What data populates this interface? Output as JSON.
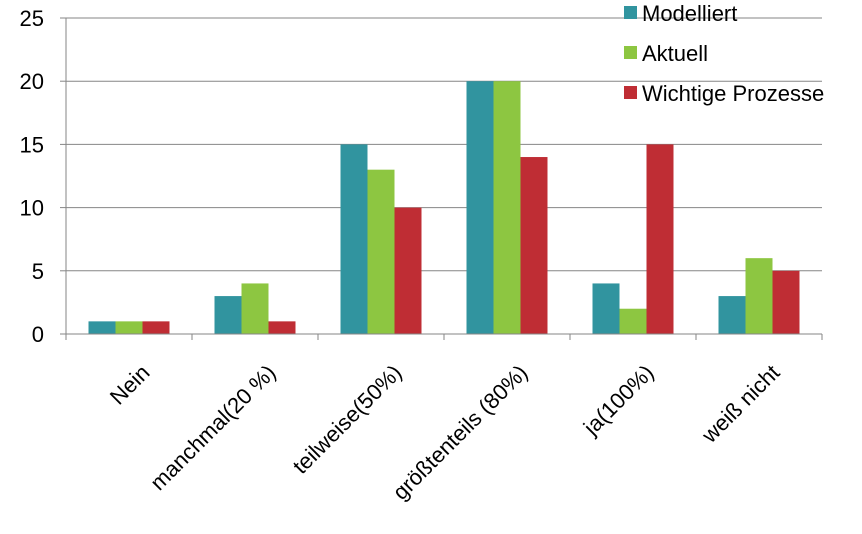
{
  "chart_data": {
    "type": "bar",
    "categories": [
      "Nein",
      "manchmal(20 %)",
      "teilweise(50%)",
      "größtenteils (80%)",
      "ja(100%)",
      "weiß nicht"
    ],
    "series": [
      {
        "name": "Modelliert",
        "color": "#31949F",
        "values": [
          1,
          3,
          15,
          20,
          4,
          3
        ]
      },
      {
        "name": "Aktuell",
        "color": "#8DC641",
        "values": [
          1,
          4,
          13,
          20,
          2,
          6
        ]
      },
      {
        "name": "Wichtige Prozesse",
        "color": "#BF2D34",
        "values": [
          1,
          1,
          10,
          14,
          15,
          5
        ]
      }
    ],
    "yticks": [
      "0",
      "5",
      "10",
      "15",
      "20",
      "25"
    ],
    "ylim": [
      0,
      25
    ],
    "grid": true,
    "legend_position": "top-right",
    "title": "",
    "xlabel": "",
    "ylabel": ""
  }
}
